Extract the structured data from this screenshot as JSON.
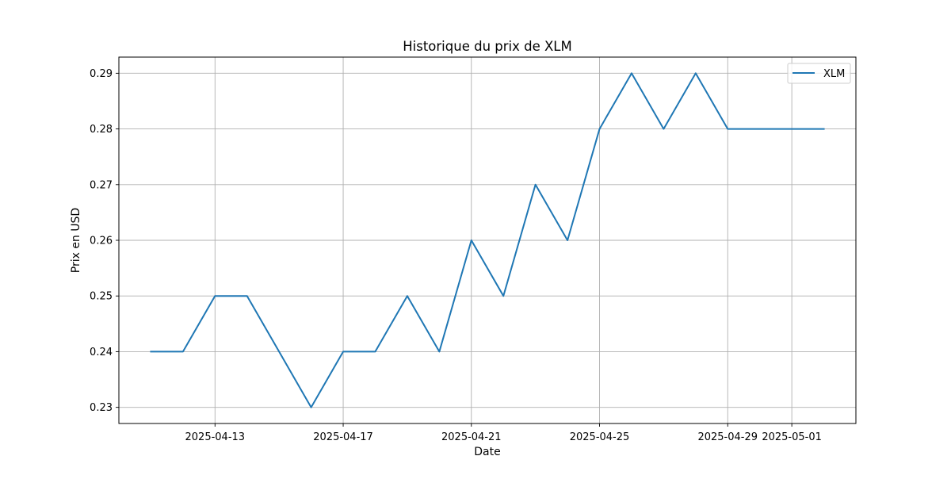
{
  "chart_data": {
    "type": "line",
    "title": "Historique du prix de XLM",
    "xlabel": "Date",
    "ylabel": "Prix en USD",
    "x": [
      "2025-04-11",
      "2025-04-12",
      "2025-04-13",
      "2025-04-14",
      "2025-04-15",
      "2025-04-16",
      "2025-04-17",
      "2025-04-18",
      "2025-04-19",
      "2025-04-20",
      "2025-04-21",
      "2025-04-22",
      "2025-04-23",
      "2025-04-24",
      "2025-04-25",
      "2025-04-25",
      "2025-04-26",
      "2025-04-27",
      "2025-04-28",
      "2025-04-29",
      "2025-04-30",
      "2025-05-01",
      "2025-05-02"
    ],
    "series": [
      {
        "name": "XLM",
        "color": "#1f77b4",
        "values": [
          0.24,
          0.24,
          0.25,
          0.25,
          0.24,
          0.23,
          0.24,
          0.24,
          0.25,
          0.24,
          0.26,
          0.25,
          0.27,
          0.26,
          0.28,
          0.28,
          0.29,
          0.28,
          0.29,
          0.28,
          0.28,
          0.28,
          0.28
        ]
      }
    ],
    "xticks": [
      "2025-04-13",
      "2025-04-17",
      "2025-04-21",
      "2025-04-25",
      "2025-04-29",
      "2025-05-01"
    ],
    "yticks": [
      0.23,
      0.24,
      0.25,
      0.26,
      0.27,
      0.28,
      0.29
    ],
    "ytick_labels": [
      "0.23",
      "0.24",
      "0.25",
      "0.26",
      "0.27",
      "0.28",
      "0.29"
    ],
    "xlim": [
      "2025-04-10",
      "2025-05-03"
    ],
    "ylim": [
      0.2271,
      0.2929
    ],
    "grid": true,
    "legend_position": "upper right",
    "colors": {
      "grid": "#b0b0b0",
      "axes": "#000000",
      "background": "#ffffff"
    }
  }
}
